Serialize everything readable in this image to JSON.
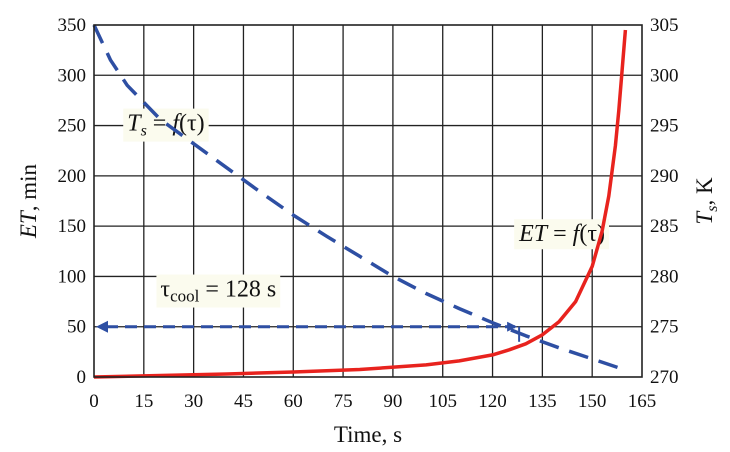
{
  "chart_data": {
    "type": "line",
    "title": "",
    "xlabel": "Time, s",
    "ylabel": "ET, min",
    "y2label": "Ts, K",
    "xlim": [
      0,
      165
    ],
    "ylim": [
      0,
      350
    ],
    "y2lim": [
      270,
      305
    ],
    "xticks": [
      0,
      15,
      30,
      45,
      60,
      75,
      90,
      105,
      120,
      135,
      150,
      165
    ],
    "yticks": [
      0,
      50,
      100,
      150,
      200,
      250,
      300,
      350
    ],
    "y2ticks": [
      270,
      275,
      280,
      285,
      290,
      295,
      300,
      305
    ],
    "grid": true,
    "series": [
      {
        "name": "ET = f(τ)",
        "axis": "left",
        "color": "#e8231e",
        "style": "solid",
        "x": [
          0,
          20,
          40,
          60,
          80,
          100,
          110,
          120,
          125,
          130,
          135,
          140,
          145,
          150,
          153,
          155,
          157,
          158,
          159,
          160
        ],
        "y": [
          0,
          1.5,
          3,
          5,
          7.5,
          12,
          16,
          22,
          27,
          33,
          42,
          55,
          75,
          110,
          145,
          180,
          230,
          265,
          305,
          345
        ]
      },
      {
        "name": "Ts = f(τ)",
        "axis": "right",
        "color": "#2e4fa3",
        "style": "dashed",
        "x": [
          0,
          5,
          10,
          20,
          30,
          40,
          50,
          60,
          70,
          80,
          90,
          100,
          110,
          120,
          130,
          140,
          150,
          160
        ],
        "y": [
          305,
          301.5,
          299,
          295.6,
          293.2,
          290.8,
          288.4,
          286.1,
          284,
          282,
          280,
          278.3,
          276.8,
          275.4,
          274.1,
          272.9,
          271.8,
          270.7
        ]
      }
    ],
    "annotations": {
      "ts_label": {
        "text": "Ts = f(τ)",
        "x": 10,
        "y": 245
      },
      "et_label": {
        "text": "ET = f(τ)",
        "x": 128,
        "y": 135
      },
      "tau_label": {
        "text": "τcool = 128 s",
        "x": 20,
        "y": 80
      },
      "tau_cool": {
        "x": 128,
        "y": 50,
        "y_bottom": 35
      }
    },
    "colors": {
      "et_line": "#e8231e",
      "ts_line": "#2e4fa3",
      "grid": "#222222"
    }
  }
}
